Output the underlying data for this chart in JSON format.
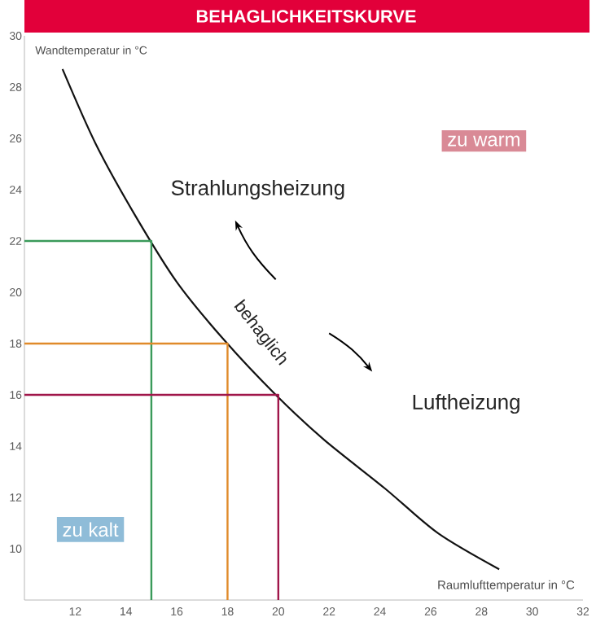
{
  "chart_data": {
    "type": "line",
    "title": "BEHAGLICHKEITSKURVE",
    "xlabel": "Raumlufttemperatur in °C",
    "ylabel": "Wandtemperatur in °C",
    "xlim": [
      10,
      32
    ],
    "ylim": [
      8,
      30
    ],
    "xticks": [
      12,
      14,
      16,
      18,
      20,
      22,
      24,
      26,
      28,
      30,
      32
    ],
    "yticks": [
      10,
      12,
      14,
      16,
      18,
      20,
      22,
      24,
      26,
      28,
      30
    ],
    "grid": false,
    "marker": "none",
    "line_style": "solid",
    "series": [
      {
        "color": "#111111",
        "x": [
          11.5,
          12.8,
          14.3,
          16.0,
          17.9,
          19.9,
          21.8,
          24.2,
          26.3,
          28.7
        ],
        "values": [
          28.7,
          25.8,
          23.1,
          20.4,
          18.1,
          16.0,
          14.25,
          12.35,
          10.6,
          9.2
        ]
      },
      {
        "color": "#3a9a5a",
        "x": [
          10,
          15,
          15
        ],
        "values": [
          22,
          22,
          8
        ]
      },
      {
        "color": "#e08a2a",
        "x": [
          10,
          18,
          18
        ],
        "values": [
          18,
          18,
          8
        ]
      },
      {
        "color": "#a0164a",
        "x": [
          10,
          20,
          20
        ],
        "values": [
          16,
          16,
          8
        ]
      }
    ],
    "annotations": [
      "Strahlungsheizung",
      "zu warm",
      "behaglich",
      "Luftheizung",
      "zu kalt"
    ]
  }
}
